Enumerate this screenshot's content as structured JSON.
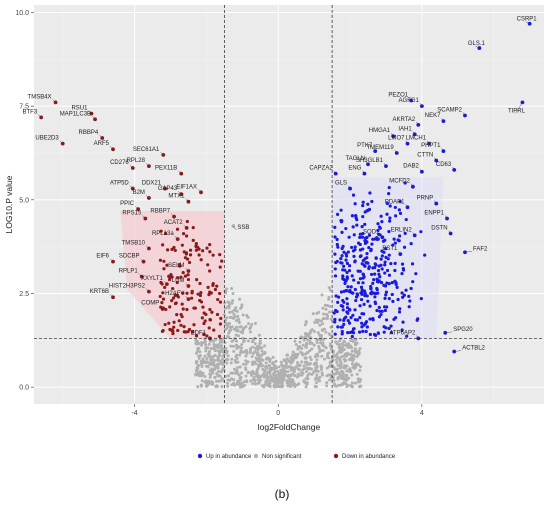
{
  "caption": "(b)",
  "chart_data": {
    "type": "scatter",
    "title": "",
    "xlabel": "log2FoldChange",
    "ylabel": "LOG10.P value",
    "xlim": [
      -6.8,
      7.4
    ],
    "ylim": [
      -0.45,
      10.2
    ],
    "x_ticks": [
      -4,
      0,
      4
    ],
    "y_ticks": [
      0.0,
      2.5,
      5.0,
      7.5,
      10.0
    ],
    "y_tick_labels": [
      "0.0",
      "2.5",
      "5.0",
      "7.5",
      "10.0"
    ],
    "grid": true,
    "background": "#ebebeb",
    "legend_placement": "bottom",
    "thresholds": {
      "fold_change": [
        -1.5,
        1.5
      ],
      "p_value_line": 1.3
    },
    "colors": {
      "up": "#1a1adb",
      "down": "#8b1a1a",
      "ns": "#b0b0b0",
      "down_fill": "#f6cdd3",
      "up_fill": "#ddddf7"
    },
    "series": [
      {
        "name": "Up in abundance",
        "key": "up"
      },
      {
        "name": "Non significant",
        "key": "ns"
      },
      {
        "name": "Down in abundance",
        "key": "down"
      }
    ],
    "labeled_points": [
      {
        "label": "CSRP1",
        "x": 7.0,
        "y": 9.7,
        "group": "up"
      },
      {
        "label": "GLS.1",
        "x": 5.6,
        "y": 9.05,
        "group": "up"
      },
      {
        "label": "PEZO1",
        "x": 3.7,
        "y": 7.65,
        "group": "up"
      },
      {
        "label": "AGFG1",
        "x": 4.0,
        "y": 7.5,
        "group": "up"
      },
      {
        "label": "SCAMP2",
        "x": 5.2,
        "y": 7.25,
        "group": "up"
      },
      {
        "label": "TIPRL",
        "x": 6.8,
        "y": 7.6,
        "group": "up"
      },
      {
        "label": "AKRTA2",
        "x": 3.9,
        "y": 7.0,
        "group": "up"
      },
      {
        "label": "NEK7",
        "x": 4.6,
        "y": 7.1,
        "group": "up"
      },
      {
        "label": "HMGA1",
        "x": 3.2,
        "y": 6.7,
        "group": "up"
      },
      {
        "label": "IAH1",
        "x": 3.8,
        "y": 6.75,
        "group": "up"
      },
      {
        "label": "LMO7",
        "x": 3.6,
        "y": 6.5,
        "group": "up"
      },
      {
        "label": "LMCH1",
        "x": 4.2,
        "y": 6.5,
        "group": "up"
      },
      {
        "label": "PTK7",
        "x": 2.7,
        "y": 6.3,
        "group": "up"
      },
      {
        "label": "TMEM119",
        "x": 3.3,
        "y": 6.25,
        "group": "up"
      },
      {
        "label": "PHPT1",
        "x": 4.6,
        "y": 6.3,
        "group": "up"
      },
      {
        "label": "TAGLN",
        "x": 2.5,
        "y": 5.95,
        "group": "up"
      },
      {
        "label": "SH3GLB1",
        "x": 3.0,
        "y": 5.9,
        "group": "up"
      },
      {
        "label": "CTTN",
        "x": 4.4,
        "y": 6.05,
        "group": "up"
      },
      {
        "label": "CAPZA2",
        "x": 1.6,
        "y": 5.7,
        "group": "up"
      },
      {
        "label": "ENG",
        "x": 2.4,
        "y": 5.7,
        "group": "up"
      },
      {
        "label": "DAB2",
        "x": 4.0,
        "y": 5.75,
        "group": "up"
      },
      {
        "label": "CD63",
        "x": 4.9,
        "y": 5.8,
        "group": "up"
      },
      {
        "label": "MCFD2",
        "x": 3.75,
        "y": 5.35,
        "group": "up"
      },
      {
        "label": "GLS",
        "x": 2.0,
        "y": 5.3,
        "group": "up"
      },
      {
        "label": "PRNP",
        "x": 4.4,
        "y": 4.9,
        "group": "up"
      },
      {
        "label": "PDAP1",
        "x": 3.6,
        "y": 4.8,
        "group": "up"
      },
      {
        "label": "ENPP1",
        "x": 4.7,
        "y": 4.5,
        "group": "up"
      },
      {
        "label": "SOD1",
        "x": 2.9,
        "y": 4.0,
        "group": "up"
      },
      {
        "label": "DSTN",
        "x": 4.8,
        "y": 4.1,
        "group": "up"
      },
      {
        "label": "ERLIN2",
        "x": 3.8,
        "y": 4.05,
        "group": "up"
      },
      {
        "label": "BST1",
        "x": 3.4,
        "y": 3.55,
        "group": "up"
      },
      {
        "label": "FAF2",
        "x": 5.2,
        "y": 3.6,
        "group": "up"
      },
      {
        "label": "SPG20",
        "x": 4.65,
        "y": 1.45,
        "group": "up"
      },
      {
        "label": "ATP6AP2",
        "x": 3.9,
        "y": 1.3,
        "group": "up"
      },
      {
        "label": "ACTBL2",
        "x": 4.9,
        "y": 0.95,
        "group": "up"
      },
      {
        "label": "TMSB4X",
        "x": -6.2,
        "y": 7.6,
        "group": "down"
      },
      {
        "label": "RSU1",
        "x": -5.2,
        "y": 7.3,
        "group": "down"
      },
      {
        "label": "BTF3",
        "x": -6.6,
        "y": 7.2,
        "group": "down"
      },
      {
        "label": "MAP1LC3B",
        "x": -5.1,
        "y": 7.15,
        "group": "down"
      },
      {
        "label": "RBBP4",
        "x": -4.9,
        "y": 6.65,
        "group": "down"
      },
      {
        "label": "UBE2D3",
        "x": -6.0,
        "y": 6.5,
        "group": "down"
      },
      {
        "label": "ARF5",
        "x": -4.6,
        "y": 6.35,
        "group": "down"
      },
      {
        "label": "SEC61A1",
        "x": -3.2,
        "y": 6.2,
        "group": "down"
      },
      {
        "label": "CD276",
        "x": -4.05,
        "y": 5.85,
        "group": "down"
      },
      {
        "label": "RPL28",
        "x": -3.6,
        "y": 5.9,
        "group": "down"
      },
      {
        "label": "PEX11B",
        "x": -2.7,
        "y": 5.7,
        "group": "down"
      },
      {
        "label": "ATP5D",
        "x": -4.05,
        "y": 5.3,
        "group": "down"
      },
      {
        "label": "DDX21",
        "x": -3.15,
        "y": 5.3,
        "group": "down"
      },
      {
        "label": "GAP43",
        "x": -2.7,
        "y": 5.15,
        "group": "down"
      },
      {
        "label": "EIF1AX",
        "x": -2.15,
        "y": 5.2,
        "group": "down"
      },
      {
        "label": "B2M",
        "x": -3.6,
        "y": 5.05,
        "group": "down"
      },
      {
        "label": "PPIC",
        "x": -3.9,
        "y": 4.75,
        "group": "down"
      },
      {
        "label": "MTX1",
        "x": -2.5,
        "y": 4.95,
        "group": "down"
      },
      {
        "label": "RPS15",
        "x": -3.7,
        "y": 4.5,
        "group": "down"
      },
      {
        "label": "RBBP7",
        "x": -2.9,
        "y": 4.55,
        "group": "down"
      },
      {
        "label": "ACAT2",
        "x": -2.55,
        "y": 4.25,
        "group": "down"
      },
      {
        "label": "RPL13a",
        "x": -2.8,
        "y": 3.95,
        "group": "down"
      },
      {
        "label": "SSB",
        "x": -1.25,
        "y": 4.3,
        "group": "ns"
      },
      {
        "label": "TMSB10",
        "x": -3.6,
        "y": 3.7,
        "group": "down"
      },
      {
        "label": "EIF6",
        "x": -4.6,
        "y": 3.35,
        "group": "down"
      },
      {
        "label": "SDCBP",
        "x": -3.75,
        "y": 3.35,
        "group": "down"
      },
      {
        "label": "SELM",
        "x": -2.5,
        "y": 3.1,
        "group": "down"
      },
      {
        "label": "RPLP1",
        "x": -3.8,
        "y": 2.95,
        "group": "down"
      },
      {
        "label": "XXYLT1",
        "x": -3.1,
        "y": 2.75,
        "group": "down"
      },
      {
        "label": "LUM",
        "x": -2.5,
        "y": 2.7,
        "group": "down"
      },
      {
        "label": "HIST2H3PS2",
        "x": -3.6,
        "y": 2.55,
        "group": "down"
      },
      {
        "label": "H2AFV",
        "x": -2.5,
        "y": 2.35,
        "group": "down"
      },
      {
        "label": "KRT6B",
        "x": -4.6,
        "y": 2.4,
        "group": "down"
      },
      {
        "label": "COMP",
        "x": -3.2,
        "y": 2.1,
        "group": "down"
      },
      {
        "label": "EDF1",
        "x": -1.9,
        "y": 1.3,
        "group": "down"
      }
    ]
  }
}
